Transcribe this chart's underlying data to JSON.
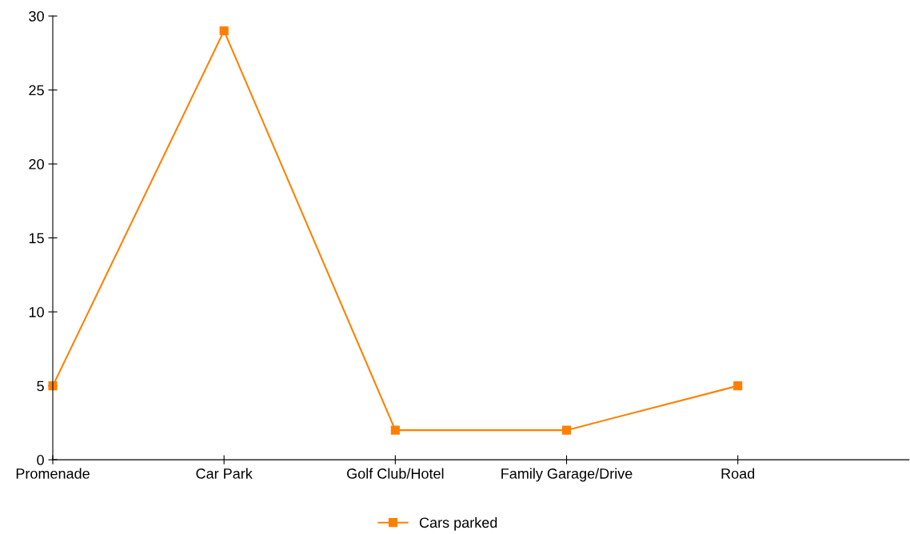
{
  "chart_data": {
    "type": "line",
    "categories": [
      "Promenade",
      "Car Park",
      "Golf Club/Hotel",
      "Family Garage/Drive",
      "Road"
    ],
    "series": [
      {
        "name": "Cars parked",
        "color": "#ff8000",
        "values": [
          5,
          29,
          2,
          2,
          5
        ]
      }
    ],
    "ylim": [
      0,
      30
    ],
    "yticks": [
      0,
      5,
      10,
      15,
      20,
      25,
      30
    ],
    "grid": false,
    "legend": "bottom",
    "marker": "square",
    "line_style": "solid"
  }
}
